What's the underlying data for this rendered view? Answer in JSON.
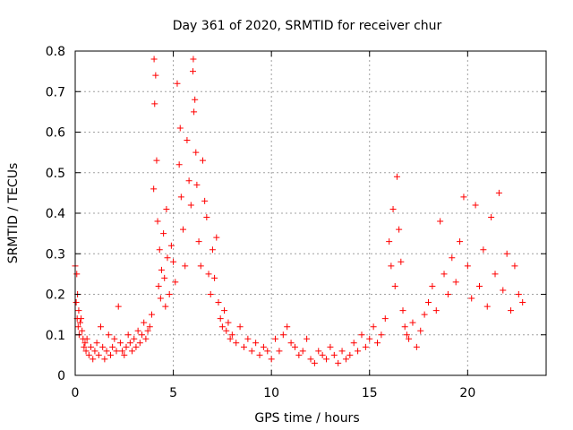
{
  "chart_data": {
    "type": "scatter",
    "title": "Day 361 of 2020, SRMTID for receiver chur",
    "xlabel": "GPS time / hours",
    "ylabel": "SRMTID / TECUs",
    "xlim": [
      0,
      24
    ],
    "ylim": [
      0,
      0.8
    ],
    "xticks": [
      0,
      5,
      10,
      15,
      20
    ],
    "yticks": [
      0,
      0.1,
      0.2,
      0.3,
      0.4,
      0.5,
      0.6,
      0.7,
      0.8
    ],
    "xtick_labels": [
      "0",
      "5",
      "10",
      "15",
      "20"
    ],
    "ytick_labels": [
      "0",
      "0.1",
      "0.2",
      "0.3",
      "0.4",
      "0.5",
      "0.6",
      "0.7",
      "0.8"
    ],
    "grid": true,
    "marker": "+",
    "color": "#ff0000",
    "series": [
      {
        "name": "SRMTID",
        "x": [
          0.0,
          0.05,
          0.08,
          0.1,
          0.12,
          0.15,
          0.18,
          0.2,
          0.25,
          0.3,
          0.35,
          0.4,
          0.45,
          0.5,
          0.55,
          0.6,
          0.7,
          0.8,
          0.9,
          1.0,
          1.1,
          1.2,
          1.3,
          1.4,
          1.5,
          1.6,
          1.7,
          1.8,
          1.9,
          2.0,
          2.1,
          2.2,
          2.3,
          2.4,
          2.5,
          2.6,
          2.7,
          2.8,
          2.9,
          3.0,
          3.1,
          3.2,
          3.3,
          3.4,
          3.5,
          3.6,
          3.7,
          3.8,
          3.9,
          4.0,
          4.02,
          4.05,
          4.1,
          4.15,
          4.2,
          4.25,
          4.3,
          4.35,
          4.4,
          4.5,
          4.55,
          4.6,
          4.65,
          4.7,
          4.8,
          4.9,
          5.0,
          5.1,
          5.2,
          5.3,
          5.35,
          5.4,
          5.5,
          5.6,
          5.7,
          5.8,
          5.9,
          6.0,
          6.02,
          6.05,
          6.1,
          6.15,
          6.2,
          6.3,
          6.4,
          6.5,
          6.6,
          6.7,
          6.8,
          6.9,
          7.0,
          7.1,
          7.2,
          7.3,
          7.4,
          7.5,
          7.6,
          7.7,
          7.8,
          7.9,
          8.0,
          8.2,
          8.4,
          8.6,
          8.8,
          9.0,
          9.2,
          9.4,
          9.6,
          9.8,
          10.0,
          10.2,
          10.4,
          10.6,
          10.8,
          11.0,
          11.2,
          11.4,
          11.6,
          11.8,
          12.0,
          12.2,
          12.4,
          12.6,
          12.8,
          13.0,
          13.2,
          13.4,
          13.6,
          13.8,
          14.0,
          14.2,
          14.4,
          14.6,
          14.8,
          15.0,
          15.2,
          15.4,
          15.6,
          15.8,
          16.0,
          16.1,
          16.2,
          16.3,
          16.4,
          16.5,
          16.6,
          16.7,
          16.8,
          16.9,
          17.0,
          17.2,
          17.4,
          17.6,
          17.8,
          18.0,
          18.2,
          18.4,
          18.6,
          18.8,
          19.0,
          19.2,
          19.4,
          19.6,
          19.8,
          20.0,
          20.2,
          20.4,
          20.6,
          20.8,
          21.0,
          21.2,
          21.4,
          21.6,
          21.8,
          22.0,
          22.2,
          22.4,
          22.6,
          22.8
        ],
        "y": [
          0.27,
          0.18,
          0.25,
          0.14,
          0.2,
          0.12,
          0.16,
          0.1,
          0.13,
          0.14,
          0.11,
          0.09,
          0.07,
          0.08,
          0.06,
          0.09,
          0.05,
          0.07,
          0.04,
          0.06,
          0.08,
          0.05,
          0.12,
          0.07,
          0.04,
          0.06,
          0.1,
          0.05,
          0.07,
          0.09,
          0.06,
          0.17,
          0.08,
          0.06,
          0.05,
          0.07,
          0.1,
          0.08,
          0.06,
          0.09,
          0.07,
          0.11,
          0.08,
          0.1,
          0.13,
          0.09,
          0.11,
          0.12,
          0.15,
          0.46,
          0.78,
          0.67,
          0.74,
          0.53,
          0.38,
          0.22,
          0.31,
          0.19,
          0.26,
          0.35,
          0.24,
          0.17,
          0.41,
          0.29,
          0.2,
          0.32,
          0.28,
          0.23,
          0.72,
          0.52,
          0.61,
          0.44,
          0.36,
          0.27,
          0.58,
          0.48,
          0.42,
          0.75,
          0.78,
          0.65,
          0.68,
          0.55,
          0.47,
          0.33,
          0.27,
          0.53,
          0.43,
          0.39,
          0.25,
          0.2,
          0.31,
          0.24,
          0.34,
          0.18,
          0.14,
          0.12,
          0.16,
          0.11,
          0.13,
          0.09,
          0.1,
          0.08,
          0.12,
          0.07,
          0.09,
          0.06,
          0.08,
          0.05,
          0.07,
          0.06,
          0.04,
          0.09,
          0.06,
          0.1,
          0.12,
          0.08,
          0.07,
          0.05,
          0.06,
          0.09,
          0.04,
          0.03,
          0.06,
          0.05,
          0.04,
          0.07,
          0.05,
          0.03,
          0.06,
          0.04,
          0.05,
          0.08,
          0.06,
          0.1,
          0.07,
          0.09,
          0.12,
          0.08,
          0.1,
          0.14,
          0.33,
          0.27,
          0.41,
          0.22,
          0.49,
          0.36,
          0.28,
          0.16,
          0.12,
          0.1,
          0.09,
          0.13,
          0.07,
          0.11,
          0.15,
          0.18,
          0.22,
          0.16,
          0.38,
          0.25,
          0.2,
          0.29,
          0.23,
          0.33,
          0.44,
          0.27,
          0.19,
          0.42,
          0.22,
          0.31,
          0.17,
          0.39,
          0.25,
          0.45,
          0.21,
          0.3,
          0.16,
          0.27,
          0.2,
          0.18
        ]
      }
    ]
  }
}
